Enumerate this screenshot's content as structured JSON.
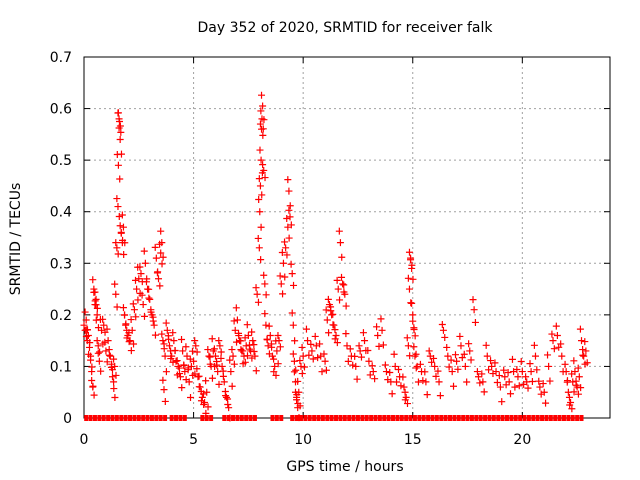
{
  "chart_data": {
    "type": "scatter",
    "title": "Day 352 of 2020, SRMTID for receiver falk",
    "xlabel": "GPS time / hours",
    "ylabel": "SRMTID / TECUs",
    "xlim": [
      0,
      24
    ],
    "ylim": [
      0,
      0.7
    ],
    "x_ticks": [
      "0",
      "5",
      "10",
      "15",
      "20"
    ],
    "y_ticks": [
      "0",
      "0.1",
      "0.2",
      "0.3",
      "0.4",
      "0.5",
      "0.6",
      "0.7"
    ],
    "x_tick_values": [
      0,
      5,
      10,
      15,
      20
    ],
    "y_tick_values": [
      0,
      0.1,
      0.2,
      0.3,
      0.4,
      0.5,
      0.6,
      0.7
    ],
    "grid": true,
    "marker": "plus",
    "series": [
      {
        "name": "SRMTID",
        "color": "#ff0000",
        "points": [
          [
            0.05,
            0.17
          ],
          [
            0.1,
            0.19
          ],
          [
            0.15,
            0.15
          ],
          [
            0.2,
            0.16
          ],
          [
            0.3,
            0.12
          ],
          [
            0.35,
            0.09
          ],
          [
            0.4,
            0.06
          ],
          [
            0.45,
            0.25
          ],
          [
            0.5,
            0.22
          ],
          [
            0.55,
            0.23
          ],
          [
            0.6,
            0.2
          ],
          [
            0.65,
            0.14
          ],
          [
            0.7,
            0.11
          ],
          [
            0.8,
            0.17
          ],
          [
            0.9,
            0.18
          ],
          [
            1.0,
            0.13
          ],
          [
            1.1,
            0.15
          ],
          [
            1.2,
            0.12
          ],
          [
            1.3,
            0.08
          ],
          [
            1.35,
            0.07
          ],
          [
            1.4,
            0.1
          ],
          [
            1.45,
            0.24
          ],
          [
            1.5,
            0.33
          ],
          [
            1.55,
            0.41
          ],
          [
            1.57,
            0.49
          ],
          [
            1.6,
            0.58
          ],
          [
            1.62,
            0.575
          ],
          [
            1.65,
            0.54
          ],
          [
            1.7,
            0.36
          ],
          [
            1.75,
            0.34
          ],
          [
            1.8,
            0.37
          ],
          [
            1.85,
            0.2
          ],
          [
            1.9,
            0.18
          ],
          [
            2.0,
            0.16
          ],
          [
            2.1,
            0.15
          ],
          [
            2.2,
            0.17
          ],
          [
            2.3,
            0.21
          ],
          [
            2.4,
            0.25
          ],
          [
            2.5,
            0.27
          ],
          [
            2.6,
            0.28
          ],
          [
            2.7,
            0.22
          ],
          [
            2.8,
            0.3
          ],
          [
            2.9,
            0.25
          ],
          [
            3.0,
            0.23
          ],
          [
            3.1,
            0.2
          ],
          [
            3.2,
            0.18
          ],
          [
            3.3,
            0.31
          ],
          [
            3.4,
            0.27
          ],
          [
            3.5,
            0.32
          ],
          [
            3.55,
            0.34
          ],
          [
            3.6,
            0.15
          ],
          [
            3.65,
            0.055
          ],
          [
            3.7,
            0.12
          ],
          [
            3.8,
            0.17
          ],
          [
            3.9,
            0.14
          ],
          [
            4.0,
            0.12
          ],
          [
            4.1,
            0.15
          ],
          [
            4.2,
            0.11
          ],
          [
            4.3,
            0.1
          ],
          [
            4.4,
            0.08
          ],
          [
            4.5,
            0.13
          ],
          [
            4.6,
            0.09
          ],
          [
            4.7,
            0.12
          ],
          [
            4.8,
            0.07
          ],
          [
            4.9,
            0.1
          ],
          [
            5.0,
            0.11
          ],
          [
            5.1,
            0.14
          ],
          [
            5.2,
            0.08
          ],
          [
            5.3,
            0.06
          ],
          [
            5.4,
            0.04
          ],
          [
            5.5,
            0.03
          ],
          [
            5.6,
            0.05
          ],
          [
            5.7,
            0.12
          ],
          [
            5.8,
            0.1
          ],
          [
            5.9,
            0.13
          ],
          [
            6.0,
            0.12
          ],
          [
            6.1,
            0.09
          ],
          [
            6.2,
            0.14
          ],
          [
            6.3,
            0.1
          ],
          [
            6.4,
            0.07
          ],
          [
            6.5,
            0.04
          ],
          [
            6.6,
            0.02
          ],
          [
            6.7,
            0.09
          ],
          [
            6.8,
            0.12
          ],
          [
            6.9,
            0.17
          ],
          [
            7.0,
            0.19
          ],
          [
            7.1,
            0.15
          ],
          [
            7.2,
            0.13
          ],
          [
            7.3,
            0.12
          ],
          [
            7.4,
            0.14
          ],
          [
            7.5,
            0.16
          ],
          [
            7.6,
            0.13
          ],
          [
            7.7,
            0.15
          ],
          [
            7.8,
            0.12
          ],
          [
            7.9,
            0.24
          ],
          [
            8.0,
            0.33
          ],
          [
            8.02,
            0.4
          ],
          [
            8.05,
            0.45
          ],
          [
            8.08,
            0.5
          ],
          [
            8.1,
            0.56
          ],
          [
            8.12,
            0.58
          ],
          [
            8.15,
            0.605
          ],
          [
            8.2,
            0.48
          ],
          [
            8.25,
            0.26
          ],
          [
            8.3,
            0.18
          ],
          [
            8.4,
            0.14
          ],
          [
            8.5,
            0.16
          ],
          [
            8.6,
            0.12
          ],
          [
            8.7,
            0.1
          ],
          [
            8.8,
            0.13
          ],
          [
            8.9,
            0.15
          ],
          [
            9.0,
            0.26
          ],
          [
            9.1,
            0.3
          ],
          [
            9.2,
            0.33
          ],
          [
            9.3,
            0.37
          ],
          [
            9.35,
            0.44
          ],
          [
            9.4,
            0.39
          ],
          [
            9.5,
            0.28
          ],
          [
            9.55,
            0.18
          ],
          [
            9.6,
            0.11
          ],
          [
            9.65,
            0.07
          ],
          [
            9.7,
            0.04
          ],
          [
            9.75,
            0.02
          ],
          [
            9.8,
            0.05
          ],
          [
            9.9,
            0.1
          ],
          [
            10.0,
            0.12
          ],
          [
            10.2,
            0.15
          ],
          [
            10.4,
            0.13
          ],
          [
            10.6,
            0.14
          ],
          [
            10.8,
            0.12
          ],
          [
            11.0,
            0.11
          ],
          [
            11.1,
            0.19
          ],
          [
            11.2,
            0.22
          ],
          [
            11.3,
            0.2
          ],
          [
            11.4,
            0.18
          ],
          [
            11.5,
            0.16
          ],
          [
            11.6,
            0.25
          ],
          [
            11.7,
            0.34
          ],
          [
            11.8,
            0.26
          ],
          [
            11.9,
            0.24
          ],
          [
            12.0,
            0.14
          ],
          [
            12.2,
            0.12
          ],
          [
            12.4,
            0.1
          ],
          [
            12.6,
            0.13
          ],
          [
            12.8,
            0.15
          ],
          [
            13.0,
            0.11
          ],
          [
            13.2,
            0.09
          ],
          [
            13.4,
            0.16
          ],
          [
            13.6,
            0.17
          ],
          [
            13.8,
            0.09
          ],
          [
            14.0,
            0.07
          ],
          [
            14.2,
            0.1
          ],
          [
            14.4,
            0.08
          ],
          [
            14.6,
            0.06
          ],
          [
            14.7,
            0.04
          ],
          [
            14.8,
            0.14
          ],
          [
            14.85,
            0.25
          ],
          [
            14.9,
            0.31
          ],
          [
            14.95,
            0.29
          ],
          [
            15.0,
            0.2
          ],
          [
            15.05,
            0.175
          ],
          [
            15.1,
            0.12
          ],
          [
            15.2,
            0.1
          ],
          [
            15.4,
            0.09
          ],
          [
            15.6,
            0.07
          ],
          [
            15.8,
            0.12
          ],
          [
            16.0,
            0.1
          ],
          [
            16.2,
            0.07
          ],
          [
            16.4,
            0.17
          ],
          [
            16.6,
            0.12
          ],
          [
            16.8,
            0.09
          ],
          [
            17.0,
            0.11
          ],
          [
            17.2,
            0.14
          ],
          [
            17.4,
            0.1
          ],
          [
            17.6,
            0.13
          ],
          [
            17.8,
            0.21
          ],
          [
            18.0,
            0.08
          ],
          [
            18.2,
            0.07
          ],
          [
            18.4,
            0.12
          ],
          [
            18.6,
            0.1
          ],
          [
            18.8,
            0.09
          ],
          [
            19.0,
            0.06
          ],
          [
            19.2,
            0.08
          ],
          [
            19.4,
            0.07
          ],
          [
            19.6,
            0.09
          ],
          [
            19.8,
            0.08
          ],
          [
            20.0,
            0.09
          ],
          [
            20.2,
            0.07
          ],
          [
            20.4,
            0.09
          ],
          [
            20.6,
            0.12
          ],
          [
            20.8,
            0.06
          ],
          [
            21.0,
            0.05
          ],
          [
            21.2,
            0.1
          ],
          [
            21.4,
            0.15
          ],
          [
            21.6,
            0.16
          ],
          [
            21.8,
            0.12
          ],
          [
            22.0,
            0.09
          ],
          [
            22.1,
            0.05
          ],
          [
            22.2,
            0.03
          ],
          [
            22.3,
            0.07
          ],
          [
            22.4,
            0.09
          ],
          [
            22.5,
            0.06
          ],
          [
            22.6,
            0.08
          ],
          [
            22.7,
            0.15
          ],
          [
            22.8,
            0.12
          ],
          [
            22.9,
            0.13
          ]
        ],
        "zero_runs": [
          [
            0.1,
            3.8
          ],
          [
            4.0,
            4.7
          ],
          [
            5.4,
            5.9
          ],
          [
            6.4,
            6.8
          ],
          [
            7.0,
            7.8
          ],
          [
            8.6,
            9.0
          ],
          [
            9.5,
            15.1
          ],
          [
            15.3,
            22.8
          ]
        ]
      }
    ]
  }
}
